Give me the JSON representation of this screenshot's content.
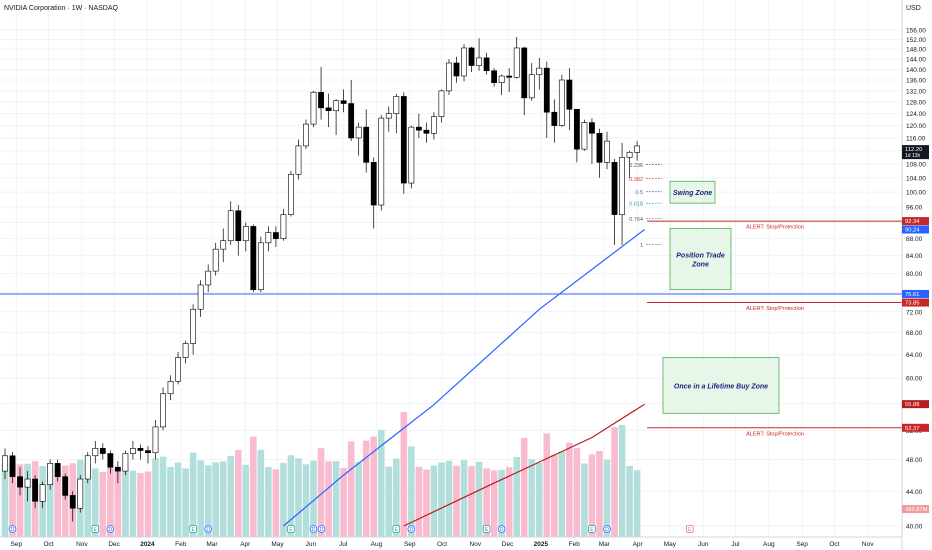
{
  "title": "NVIDIA Corporation · 1W · NASDAQ",
  "currency": "USD",
  "chart_data": {
    "type": "candlestick",
    "symbol": "NVIDIA Corporation",
    "interval": "1W",
    "exchange": "NASDAQ",
    "y_scale": "log",
    "ylim": [
      40,
      156
    ],
    "y_ticks": [
      40,
      44,
      48,
      52,
      56,
      60,
      64,
      68,
      72,
      76,
      80,
      84,
      88,
      92,
      96,
      100,
      104,
      108,
      112,
      116,
      120,
      124,
      128,
      132,
      136,
      140,
      144,
      148,
      152,
      156
    ],
    "x_labels": [
      "Sep",
      "Oct",
      "Nov",
      "Dec",
      "2024",
      "Feb",
      "Mar",
      "Apr",
      "May",
      "Jun",
      "Jul",
      "Aug",
      "Sep",
      "Oct",
      "Nov",
      "Dec",
      "2025",
      "Feb",
      "Mar",
      "Apr",
      "May",
      "Jun",
      "Jul",
      "Aug",
      "Sep",
      "Oct",
      "Nov"
    ],
    "x_start": "2023-08-28",
    "candles": [
      [
        46.5,
        49.5,
        45.5,
        48.5
      ],
      [
        48.5,
        49.0,
        45.0,
        45.8
      ],
      [
        45.8,
        47.0,
        43.5,
        44.5
      ],
      [
        44.5,
        46.5,
        42.8,
        45.5
      ],
      [
        45.5,
        46.0,
        42.0,
        42.8
      ],
      [
        42.8,
        45.2,
        42.0,
        44.8
      ],
      [
        44.8,
        48.0,
        44.2,
        47.5
      ],
      [
        47.5,
        48.0,
        45.2,
        45.8
      ],
      [
        45.8,
        46.2,
        43.0,
        43.5
      ],
      [
        43.5,
        44.0,
        40.5,
        42.0
      ],
      [
        42.0,
        46.0,
        41.5,
        45.5
      ],
      [
        45.5,
        49.0,
        45.0,
        48.5
      ],
      [
        48.5,
        50.5,
        47.5,
        49.5
      ],
      [
        49.5,
        50.2,
        48.0,
        48.8
      ],
      [
        48.8,
        49.2,
        46.2,
        47.0
      ],
      [
        47.0,
        47.8,
        45.0,
        46.5
      ],
      [
        46.5,
        49.2,
        46.0,
        48.8
      ],
      [
        48.8,
        50.5,
        48.0,
        49.5
      ],
      [
        49.5,
        50.0,
        48.0,
        49.2
      ],
      [
        49.2,
        49.8,
        47.5,
        48.9
      ],
      [
        48.9,
        53.5,
        48.0,
        52.5
      ],
      [
        52.5,
        58.5,
        52.0,
        57.5
      ],
      [
        57.5,
        60.5,
        56.5,
        59.5
      ],
      [
        59.5,
        64.5,
        59.0,
        63.5
      ],
      [
        63.5,
        66.5,
        62.5,
        66.0
      ],
      [
        66.0,
        73.5,
        64.0,
        72.5
      ],
      [
        72.5,
        78.5,
        71.0,
        77.5
      ],
      [
        77.5,
        82.0,
        76.0,
        80.5
      ],
      [
        80.5,
        87.0,
        79.5,
        85.5
      ],
      [
        85.5,
        90.5,
        82.5,
        87.5
      ],
      [
        87.5,
        97.5,
        86.5,
        95.0
      ],
      [
        95.0,
        96.5,
        84.0,
        87.5
      ],
      [
        87.5,
        92.0,
        85.0,
        91.0
      ],
      [
        91.0,
        91.5,
        76.0,
        76.5
      ],
      [
        76.5,
        88.5,
        76.0,
        87.0
      ],
      [
        87.0,
        91.0,
        85.0,
        89.5
      ],
      [
        89.5,
        91.0,
        86.0,
        88.0
      ],
      [
        88.0,
        95.5,
        87.5,
        94.0
      ],
      [
        94.0,
        106.0,
        93.5,
        105.0
      ],
      [
        105.0,
        115.5,
        103.5,
        113.5
      ],
      [
        113.5,
        122.0,
        112.5,
        120.5
      ],
      [
        120.5,
        132.0,
        119.5,
        131.5
      ],
      [
        131.5,
        141.0,
        122.0,
        126.0
      ],
      [
        126.0,
        131.0,
        119.5,
        125.0
      ],
      [
        125.0,
        129.0,
        117.0,
        128.5
      ],
      [
        128.5,
        132.5,
        124.5,
        127.5
      ],
      [
        127.5,
        136.0,
        115.0,
        116.0
      ],
      [
        116.0,
        121.0,
        110.5,
        119.5
      ],
      [
        119.5,
        125.5,
        105.5,
        108.5
      ],
      [
        108.5,
        110.0,
        90.5,
        96.5
      ],
      [
        96.5,
        123.5,
        95.0,
        122.5
      ],
      [
        122.5,
        126.5,
        118.0,
        124.0
      ],
      [
        124.0,
        131.0,
        117.5,
        130.0
      ],
      [
        130.0,
        131.5,
        99.5,
        102.5
      ],
      [
        102.5,
        120.0,
        101.0,
        119.5
      ],
      [
        119.5,
        124.0,
        116.0,
        118.5
      ],
      [
        118.5,
        121.0,
        114.5,
        117.5
      ],
      [
        117.5,
        124.5,
        115.5,
        123.0
      ],
      [
        123.0,
        132.5,
        121.0,
        132.0
      ],
      [
        132.0,
        144.0,
        130.5,
        142.5
      ],
      [
        142.5,
        145.0,
        135.0,
        137.5
      ],
      [
        137.5,
        150.0,
        135.5,
        148.5
      ],
      [
        148.5,
        149.0,
        139.0,
        141.5
      ],
      [
        141.5,
        152.5,
        139.5,
        144.5
      ],
      [
        144.5,
        146.5,
        138.0,
        139.5
      ],
      [
        139.5,
        140.5,
        133.5,
        135.0
      ],
      [
        135.0,
        138.0,
        130.5,
        137.5
      ],
      [
        137.5,
        140.5,
        131.5,
        137.0
      ],
      [
        137.0,
        153.0,
        136.5,
        148.5
      ],
      [
        148.5,
        149.0,
        123.5,
        129.5
      ],
      [
        129.5,
        142.5,
        128.5,
        138.0
      ],
      [
        138.0,
        144.5,
        132.5,
        140.5
      ],
      [
        140.5,
        143.0,
        116.0,
        124.5
      ],
      [
        124.5,
        129.0,
        114.5,
        120.0
      ],
      [
        120.0,
        138.0,
        119.5,
        136.0
      ],
      [
        136.0,
        140.5,
        118.5,
        125.5
      ],
      [
        125.5,
        125.5,
        108.5,
        112.5
      ],
      [
        112.5,
        122.0,
        112.0,
        121.0
      ],
      [
        121.0,
        122.5,
        108.0,
        117.5
      ],
      [
        117.5,
        119.0,
        104.0,
        108.5
      ],
      [
        108.5,
        118.0,
        106.5,
        115.0
      ],
      [
        108.5,
        109.5,
        86.5,
        94.0
      ],
      [
        94.0,
        114.5,
        86.5,
        110.0
      ],
      [
        110.0,
        112.0,
        104.0,
        111.5
      ],
      [
        111.5,
        115.0,
        109.0,
        113.5
      ]
    ],
    "volume_note": "volume histogram behind price; rising weeks green, falling weeks red",
    "moving_averages": [
      {
        "color": "#2962ff",
        "points": [
          [
            "2024-05-13",
            40.0
          ],
          [
            "2024-07-08",
            46.0
          ],
          [
            "2024-09-30",
            55.8
          ],
          [
            "2025-01-06",
            72.5
          ],
          [
            "2025-04-14",
            90.24
          ]
        ]
      },
      {
        "color": "#b71c1c",
        "points": [
          [
            "2024-09-02",
            40.0
          ],
          [
            "2024-11-25",
            45.0
          ],
          [
            "2025-02-24",
            51.0
          ],
          [
            "2025-04-14",
            55.88
          ]
        ]
      }
    ],
    "fib_levels": [
      {
        "label": "0.236",
        "price": 107.8,
        "color": "#555555"
      },
      {
        "label": "0.382",
        "price": 103.8,
        "color": "#e53935"
      },
      {
        "label": "0.5",
        "price": 100.2,
        "color": "#5c6bc0"
      },
      {
        "label": "0.618",
        "price": 97.0,
        "color": "#26a69a"
      },
      {
        "label": "0.764",
        "price": 93.0,
        "color": "#555555"
      },
      {
        "label": "1",
        "price": 86.6,
        "color": "#555555"
      }
    ],
    "horizontal_lines": [
      {
        "price": 75.61,
        "color": "#2962ff",
        "full_width": true
      },
      {
        "price": 92.34,
        "color": "#c62828",
        "alert": "ALERT: Stop/Protection"
      },
      {
        "price": 73.85,
        "color": "#c62828",
        "alert": "ALERT: Stop/Protection"
      },
      {
        "price": 52.37,
        "color": "#c62828",
        "alert": "ALERT: Stop/Protection"
      }
    ],
    "zones": [
      {
        "label": "Swing Zone",
        "top": 103.0,
        "bottom": 97.0
      },
      {
        "label": "Position Trade Zone",
        "top": 90.5,
        "bottom": 76.5
      },
      {
        "label": "Once in a Lifetime Buy Zone",
        "top": 63.5,
        "bottom": 54.5
      }
    ],
    "price_tags": [
      {
        "value": "112.20",
        "sub": "1d 13h",
        "price": 112.2,
        "bg": "#131722"
      },
      {
        "value": "92.34",
        "price": 92.34,
        "bg": "#c62828"
      },
      {
        "value": "90.24",
        "price": 90.24,
        "bg": "#2962ff"
      },
      {
        "value": "75.61",
        "price": 75.61,
        "bg": "#2962ff"
      },
      {
        "value": "73.85",
        "price": 73.85,
        "bg": "#c62828"
      },
      {
        "value": "55.88",
        "price": 55.88,
        "bg": "#b71c1c"
      },
      {
        "value": "52.37",
        "price": 52.37,
        "bg": "#c62828"
      },
      {
        "value": "493.87M",
        "price": 41.9,
        "bg": "#ef9a9a"
      }
    ],
    "event_markers": [
      {
        "letter": "D",
        "date": "2023-09-04",
        "color": "#2962ff"
      },
      {
        "letter": "E",
        "date": "2023-11-20",
        "color": "#26a69a"
      },
      {
        "letter": "D",
        "date": "2023-12-04",
        "color": "#2962ff"
      },
      {
        "letter": "E",
        "date": "2024-02-19",
        "color": "#26a69a"
      },
      {
        "letter": "D",
        "date": "2024-03-04",
        "color": "#2962ff"
      },
      {
        "letter": "E",
        "date": "2024-05-20",
        "color": "#26a69a"
      },
      {
        "letter": "D",
        "date": "2024-06-10",
        "color": "#2962ff"
      },
      {
        "letter": "D",
        "date": "2024-06-10",
        "color": "#2962ff"
      },
      {
        "letter": "E",
        "date": "2024-08-26",
        "color": "#26a69a"
      },
      {
        "letter": "D",
        "date": "2024-09-09",
        "color": "#2962ff"
      },
      {
        "letter": "E",
        "date": "2024-11-18",
        "color": "#26a69a"
      },
      {
        "letter": "D",
        "date": "2024-12-02",
        "color": "#2962ff"
      },
      {
        "letter": "E",
        "date": "2025-02-24",
        "color": "#26a69a"
      },
      {
        "letter": "D",
        "date": "2025-03-10",
        "color": "#2962ff"
      },
      {
        "letter": "E",
        "date": "2025-05-26",
        "color": "#e57373"
      }
    ],
    "colors": {
      "up_fill": "#ffffff",
      "down_fill": "#000000",
      "wick": "#000000",
      "vol_up": "#b2dfdb",
      "vol_down": "#f8bbd0",
      "grid": "#f0f3fa",
      "zone_fill": "#e8f5e9",
      "zone_border": "#4caf50",
      "zone_text": "#1a237e"
    }
  }
}
